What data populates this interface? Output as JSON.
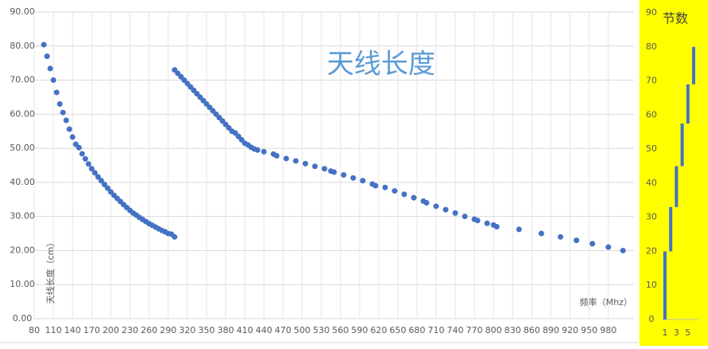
{
  "chart_data": [
    {
      "type": "scatter",
      "title": "天线长度",
      "xlabel": "频率（Mhz）",
      "ylabel": "天线长度（cm）",
      "xlim": [
        80,
        1020
      ],
      "ylim": [
        0,
        90
      ],
      "xticks": [
        80,
        110,
        140,
        170,
        200,
        230,
        260,
        290,
        320,
        350,
        380,
        410,
        440,
        470,
        500,
        530,
        560,
        590,
        620,
        650,
        680,
        710,
        740,
        770,
        800,
        830,
        860,
        890,
        920,
        950,
        980
      ],
      "yticks": [
        {
          "value": 0,
          "label": "0.00"
        },
        {
          "value": 10,
          "label": "10.00"
        },
        {
          "value": 20,
          "label": "20.00"
        },
        {
          "value": 30,
          "label": "30.00"
        },
        {
          "value": 40,
          "label": "40.00"
        },
        {
          "value": 50,
          "label": "50.00"
        },
        {
          "value": 60,
          "label": "60.00"
        },
        {
          "value": 70,
          "label": "70.00"
        },
        {
          "value": 80,
          "label": "80.00"
        },
        {
          "value": 90,
          "label": "90.00"
        }
      ],
      "grid": true,
      "series": [
        {
          "color": "#4472c4",
          "x": [
            95,
            100,
            105,
            110,
            115,
            120,
            125,
            130,
            135,
            140,
            145,
            150,
            155,
            160,
            165,
            170,
            175,
            180,
            185,
            190,
            195,
            200,
            205,
            210,
            215,
            220,
            225,
            230,
            235,
            240,
            245,
            250,
            255,
            260,
            265,
            270,
            275,
            280,
            285,
            290,
            295,
            300
          ],
          "values": [
            80.4,
            77,
            73.4,
            70,
            66.4,
            63,
            60.5,
            58.2,
            55.6,
            53.3,
            51.2,
            50.2,
            48.4,
            46.9,
            45.4,
            44,
            42.8,
            41.6,
            40.5,
            39.4,
            38.3,
            37.2,
            36.2,
            35.3,
            34.4,
            33.5,
            32.6,
            31.8,
            31,
            30.4,
            29.7,
            29.1,
            28.5,
            27.9,
            27.4,
            26.9,
            26.4,
            25.9,
            25.5,
            25,
            24.8,
            24
          ]
        },
        {
          "color": "#4472c4",
          "x": [
            300,
            305,
            310,
            315,
            320,
            325,
            330,
            335,
            340,
            345,
            350,
            355,
            360,
            365,
            370,
            375,
            380,
            385,
            390,
            395,
            400,
            405,
            410,
            415,
            420,
            425,
            430,
            440,
            455,
            460,
            475,
            490,
            505,
            520,
            535,
            545,
            550,
            565,
            580,
            595,
            610,
            615,
            630,
            645,
            660,
            675,
            690,
            695,
            710,
            725,
            740,
            755,
            770,
            775,
            790,
            800,
            805,
            840,
            875,
            905,
            930,
            955,
            980,
            1003
          ],
          "values": [
            73,
            72,
            71,
            70,
            69,
            68,
            67,
            66,
            65,
            64,
            63,
            62,
            61,
            60,
            59,
            58,
            57,
            56,
            55,
            54.5,
            53.5,
            52.5,
            51.5,
            51,
            50.3,
            49.8,
            49.5,
            49,
            48.3,
            47.8,
            47,
            46.3,
            45.5,
            44.7,
            44,
            43.3,
            43,
            42.2,
            41.3,
            40.5,
            39.5,
            39,
            38.5,
            37.5,
            36.5,
            35.5,
            34.5,
            34,
            33,
            32,
            31,
            30,
            29.2,
            28.8,
            28,
            27.5,
            27,
            26.2,
            25,
            24,
            23,
            22,
            21,
            20
          ]
        }
      ]
    },
    {
      "type": "range",
      "title": "节数",
      "color": "#4472c4",
      "categories": [
        1,
        null,
        3,
        null,
        5,
        null
      ],
      "low": [
        0,
        20,
        33,
        45,
        57.5,
        69
      ],
      "high": [
        20,
        33,
        45,
        57.5,
        69,
        80
      ],
      "ylim": [
        0,
        90
      ],
      "yticks": [
        0,
        10,
        20,
        30,
        40,
        50,
        60,
        70,
        80,
        90
      ]
    }
  ]
}
